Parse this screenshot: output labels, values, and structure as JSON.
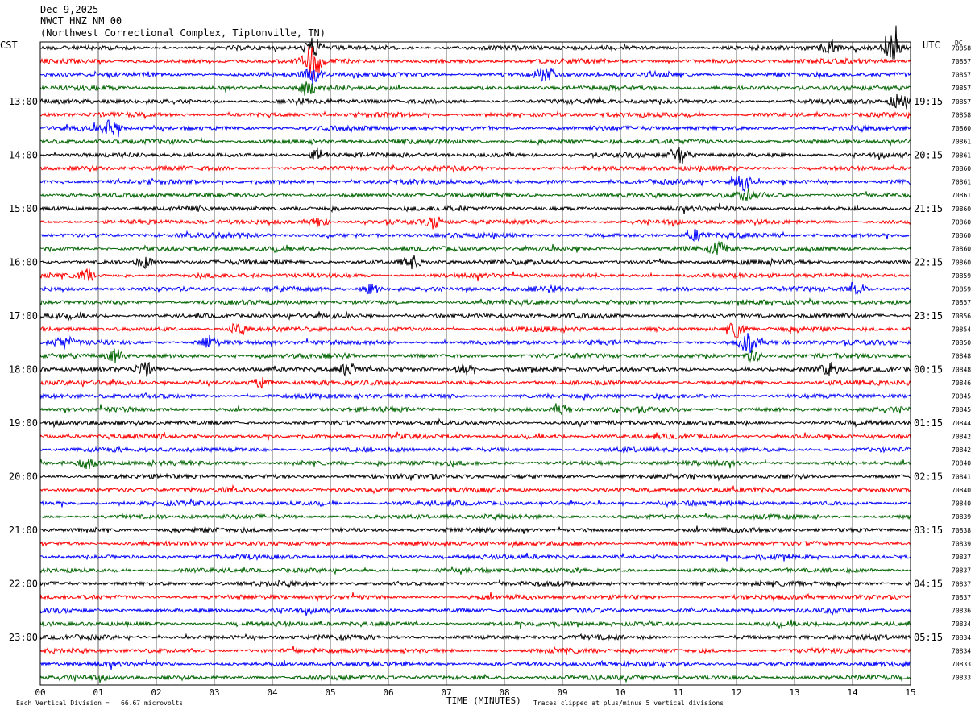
{
  "header": {
    "date": "Dec 9,2025",
    "station": "NWCT HNZ NM 00",
    "location": "(Northwest Correctional Complex, Tiptonville, TN)",
    "left_zone": "CST",
    "right_zone": "UTC",
    "dc_label": "DC"
  },
  "footer": {
    "xlabel": "TIME (MINUTES)",
    "scale_note": "Each Vertical Division =   66.67 microvolts",
    "clip_note": "Traces clipped at plus/minus 5 vertical divisions"
  },
  "chart_data": {
    "type": "line",
    "xlim": [
      0,
      15
    ],
    "x_ticks": [
      "00",
      "01",
      "02",
      "03",
      "04",
      "05",
      "06",
      "07",
      "08",
      "09",
      "10",
      "11",
      "12",
      "13",
      "14",
      "15"
    ],
    "grid": "vertical",
    "trace_colors": [
      "#000000",
      "#ff0000",
      "#0000ff",
      "#006400"
    ],
    "rows_per_hour": 4,
    "left_hour_labels": [
      "13:00",
      "14:00",
      "15:00",
      "16:00",
      "17:00",
      "18:00",
      "19:00",
      "20:00",
      "21:00",
      "22:00",
      "23:00"
    ],
    "right_hour_labels": [
      "19:15",
      "20:15",
      "21:15",
      "22:15",
      "23:15",
      "00:15",
      "01:15",
      "02:15",
      "03:15",
      "04:15",
      "05:15"
    ],
    "dc_offsets": [
      "70858",
      "70857",
      "70857",
      "70857",
      "70857",
      "70858",
      "70860",
      "70861",
      "70861",
      "70860",
      "70861",
      "70861",
      "70860",
      "70860",
      "70860",
      "70860",
      "70860",
      "70859",
      "70859",
      "70857",
      "70856",
      "70854",
      "70850",
      "70848",
      "70848",
      "70846",
      "70845",
      "70845",
      "70844",
      "70842",
      "70842",
      "70840",
      "70841",
      "70840",
      "70840",
      "70839",
      "70838",
      "70839",
      "70837",
      "70837",
      "70837",
      "70837",
      "70836",
      "70834",
      "70834",
      "70834",
      "70833",
      "70833"
    ],
    "events": [
      {
        "row": 0,
        "minute": 4.7,
        "amp": 2.5
      },
      {
        "row": 1,
        "minute": 4.7,
        "amp": 4.5
      },
      {
        "row": 2,
        "minute": 4.7,
        "amp": 2.0
      },
      {
        "row": 3,
        "minute": 4.6,
        "amp": 2.5
      },
      {
        "row": 0,
        "minute": 14.7,
        "amp": 3.0
      },
      {
        "row": 0,
        "minute": 13.6,
        "amp": 2.0
      },
      {
        "row": 2,
        "minute": 8.7,
        "amp": 1.8
      },
      {
        "row": 4,
        "minute": 14.8,
        "amp": 2.0
      },
      {
        "row": 6,
        "minute": 1.2,
        "amp": 1.8
      },
      {
        "row": 8,
        "minute": 11.0,
        "amp": 2.2
      },
      {
        "row": 8,
        "minute": 4.8,
        "amp": 1.5
      },
      {
        "row": 10,
        "minute": 12.1,
        "amp": 2.2
      },
      {
        "row": 11,
        "minute": 12.2,
        "amp": 1.5
      },
      {
        "row": 13,
        "minute": 6.8,
        "amp": 1.6
      },
      {
        "row": 13,
        "minute": 4.8,
        "amp": 1.5
      },
      {
        "row": 14,
        "minute": 11.3,
        "amp": 1.4
      },
      {
        "row": 15,
        "minute": 11.7,
        "amp": 1.6
      },
      {
        "row": 16,
        "minute": 6.4,
        "amp": 1.8
      },
      {
        "row": 16,
        "minute": 1.8,
        "amp": 1.4
      },
      {
        "row": 17,
        "minute": 0.8,
        "amp": 1.6
      },
      {
        "row": 18,
        "minute": 5.7,
        "amp": 1.3
      },
      {
        "row": 18,
        "minute": 14.1,
        "amp": 1.3
      },
      {
        "row": 21,
        "minute": 12.0,
        "amp": 2.2
      },
      {
        "row": 21,
        "minute": 3.4,
        "amp": 1.2
      },
      {
        "row": 22,
        "minute": 0.4,
        "amp": 1.8
      },
      {
        "row": 22,
        "minute": 2.9,
        "amp": 1.8
      },
      {
        "row": 22,
        "minute": 12.2,
        "amp": 2.5
      },
      {
        "row": 23,
        "minute": 1.3,
        "amp": 1.8
      },
      {
        "row": 23,
        "minute": 12.3,
        "amp": 1.6
      },
      {
        "row": 24,
        "minute": 1.8,
        "amp": 1.8
      },
      {
        "row": 24,
        "minute": 5.3,
        "amp": 1.6
      },
      {
        "row": 24,
        "minute": 7.3,
        "amp": 1.6
      },
      {
        "row": 24,
        "minute": 13.6,
        "amp": 1.8
      },
      {
        "row": 25,
        "minute": 3.8,
        "amp": 1.4
      },
      {
        "row": 27,
        "minute": 9.0,
        "amp": 1.3
      },
      {
        "row": 31,
        "minute": 0.8,
        "amp": 1.4
      }
    ]
  }
}
